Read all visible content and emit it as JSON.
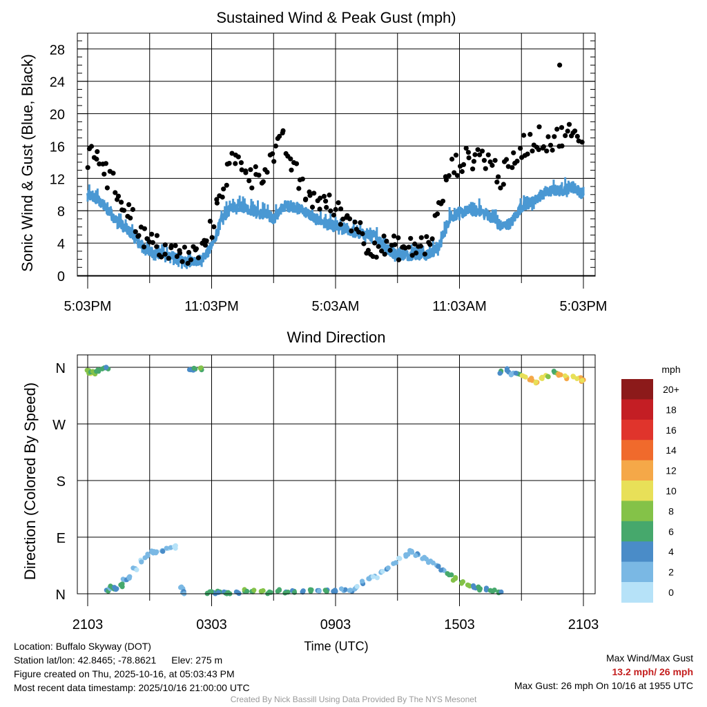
{
  "chart_data": [
    {
      "type": "scatter",
      "title": "Sustained Wind & Peak Gust (mph)",
      "ylabel": "Sonic Wind & Gust (Blue, Black)",
      "xlabel": "",
      "ylim": [
        0,
        29
      ],
      "x_ticks": [
        "5:03PM",
        "11:03PM",
        "5:03AM",
        "11:03AM",
        "5:03PM"
      ],
      "y_ticks": [
        0,
        4,
        8,
        12,
        16,
        20,
        24,
        28
      ],
      "grid": true,
      "series": [
        {
          "name": "Sustained Wind",
          "color": "#4a98d3",
          "x_hours": [
            0,
            0.5,
            1,
            1.5,
            2,
            2.5,
            3,
            3.5,
            4,
            4.5,
            5,
            5.5,
            6,
            6.5,
            7,
            7.5,
            8,
            8.5,
            9,
            9.5,
            10,
            10.5,
            11,
            11.5,
            12,
            12.5,
            13,
            13.5,
            14,
            14.5,
            15,
            15.5,
            16,
            16.5,
            17,
            17.5,
            18,
            18.5,
            19,
            19.5,
            20,
            20.5,
            21,
            21.5,
            22,
            22.5,
            23,
            23.5,
            24
          ],
          "values": [
            10,
            9.3,
            8,
            6.5,
            5.5,
            4,
            3,
            2.6,
            2.5,
            1.8,
            1.6,
            2,
            3.5,
            7,
            8.5,
            8.5,
            8,
            7.5,
            7,
            8.6,
            8.5,
            8,
            7,
            6.5,
            6,
            5.8,
            5.2,
            5,
            4.8,
            3,
            2.6,
            2.5,
            2.6,
            2.5,
            3.5,
            7,
            7.8,
            8,
            8,
            7.3,
            6,
            6.5,
            8.5,
            9,
            10,
            10.5,
            10.5,
            11,
            10
          ]
        },
        {
          "name": "Peak Gust",
          "color": "#000000",
          "x_hours": [
            0,
            0.5,
            1,
            1.5,
            2,
            2.5,
            3,
            3.5,
            4,
            4.5,
            5,
            5.5,
            6,
            6.5,
            7,
            7.5,
            8,
            8.5,
            9,
            9.5,
            10,
            10.5,
            11,
            11.5,
            12,
            12.5,
            13,
            13.5,
            14,
            14.5,
            15,
            15.5,
            16,
            16.5,
            17,
            17.5,
            18,
            18.5,
            19,
            19.5,
            20,
            20.5,
            21,
            21.5,
            22,
            22.5,
            23,
            23.5,
            24
          ],
          "values": [
            14,
            15.5,
            12,
            10,
            8,
            5.5,
            4,
            3.5,
            3,
            2.3,
            2.5,
            3,
            6,
            11,
            14,
            14,
            12,
            13,
            15,
            16.5,
            13,
            10,
            9.5,
            9,
            8,
            7.2,
            6.5,
            4,
            3.7,
            3.5,
            3.4,
            3.3,
            3.5,
            4,
            8,
            13,
            14,
            14.5,
            15,
            14,
            12,
            13.5,
            16,
            16.5,
            17,
            16.5,
            17.5,
            17.5,
            15
          ]
        }
      ]
    },
    {
      "type": "scatter",
      "title": "Wind Direction",
      "ylabel": "Direction (Colored By Speed)",
      "xlabel": "Time (UTC)",
      "x_ticks": [
        "2103",
        "0303",
        "0903",
        "1503",
        "2103"
      ],
      "y_ticks": [
        "N",
        "E",
        "S",
        "W",
        "N"
      ],
      "grid": true,
      "color_scale": {
        "title": "mph",
        "labels": [
          "20+",
          "18",
          "16",
          "14",
          "12",
          "10",
          "8",
          "6",
          "4",
          "2",
          "0"
        ],
        "colors": [
          "#8c1a1a",
          "#c41e24",
          "#e0342c",
          "#f06a2c",
          "#f5a848",
          "#e8e058",
          "#84c248",
          "#46a86c",
          "#4a8cc8",
          "#7ab8e4",
          "#b6e2f8"
        ]
      },
      "points": [
        [
          0.05,
          355,
          9
        ],
        [
          0.15,
          350,
          10
        ],
        [
          0.25,
          352,
          8
        ],
        [
          0.35,
          351,
          9
        ],
        [
          0.5,
          356,
          7
        ],
        [
          0.8,
          359,
          6
        ],
        [
          0.9,
          360,
          5
        ],
        [
          1.0,
          5,
          5
        ],
        [
          1.1,
          8,
          3
        ],
        [
          1.2,
          10,
          6
        ],
        [
          1.4,
          8,
          4
        ],
        [
          1.6,
          14,
          6
        ],
        [
          1.8,
          22,
          3
        ],
        [
          2.0,
          26,
          3
        ],
        [
          2.3,
          40,
          2
        ],
        [
          2.6,
          52,
          2
        ],
        [
          2.9,
          60,
          3
        ],
        [
          3.1,
          68,
          2
        ],
        [
          3.3,
          65,
          2
        ],
        [
          3.6,
          68,
          3
        ],
        [
          3.9,
          72,
          1
        ],
        [
          4.2,
          75,
          1
        ],
        [
          4.5,
          10,
          2
        ],
        [
          4.6,
          2,
          3
        ],
        [
          5.0,
          356,
          5
        ],
        [
          5.2,
          357,
          6
        ],
        [
          5.5,
          359,
          8
        ],
        [
          5.8,
          1,
          7
        ],
        [
          6.1,
          2,
          5
        ],
        [
          6.4,
          3,
          6
        ],
        [
          6.6,
          3,
          5
        ],
        [
          6.8,
          2,
          6
        ],
        [
          7.2,
          3,
          5
        ],
        [
          7.6,
          4,
          7
        ],
        [
          8.0,
          3,
          8
        ],
        [
          8.4,
          4,
          9
        ],
        [
          8.8,
          3,
          6
        ],
        [
          9.2,
          4,
          7
        ],
        [
          9.6,
          3,
          5
        ],
        [
          10.0,
          4,
          6
        ],
        [
          10.4,
          3,
          5
        ],
        [
          10.8,
          4,
          6
        ],
        [
          11.2,
          5,
          4
        ],
        [
          11.6,
          6,
          5
        ],
        [
          12.0,
          4,
          4
        ],
        [
          12.4,
          5,
          3
        ],
        [
          12.8,
          4,
          4
        ],
        [
          13.0,
          10,
          2
        ],
        [
          13.3,
          18,
          3
        ],
        [
          13.6,
          24,
          2
        ],
        [
          13.9,
          28,
          2
        ],
        [
          14.2,
          34,
          2
        ],
        [
          14.5,
          40,
          3
        ],
        [
          14.8,
          48,
          2
        ],
        [
          15.1,
          56,
          2
        ],
        [
          15.4,
          62,
          2
        ],
        [
          15.7,
          66,
          2
        ],
        [
          16.0,
          62,
          3
        ],
        [
          16.3,
          58,
          2
        ],
        [
          16.6,
          52,
          2
        ],
        [
          16.9,
          45,
          3
        ],
        [
          17.2,
          38,
          4
        ],
        [
          17.5,
          30,
          6
        ],
        [
          17.8,
          24,
          8
        ],
        [
          18.1,
          18,
          7
        ],
        [
          18.4,
          14,
          9
        ],
        [
          18.7,
          10,
          5
        ],
        [
          19.0,
          8,
          7
        ],
        [
          19.3,
          6,
          5
        ],
        [
          19.6,
          4,
          6
        ],
        [
          19.9,
          3,
          6
        ],
        [
          20.0,
          352,
          5
        ],
        [
          20.3,
          355,
          4
        ],
        [
          20.5,
          348,
          3
        ],
        [
          20.8,
          350,
          6
        ],
        [
          21.1,
          346,
          10
        ],
        [
          21.4,
          340,
          12
        ],
        [
          21.7,
          335,
          11
        ],
        [
          22.0,
          342,
          10
        ],
        [
          22.3,
          345,
          9
        ],
        [
          22.6,
          352,
          7
        ],
        [
          22.9,
          348,
          12
        ],
        [
          23.2,
          344,
          11
        ],
        [
          23.5,
          346,
          10
        ],
        [
          23.8,
          343,
          11
        ],
        [
          24.0,
          340,
          12
        ]
      ]
    }
  ],
  "footer": {
    "location": "Location: Buffalo Skyway (DOT)",
    "latlon": "Station lat/lon: 42.8465; -78.8621",
    "elev": "Elev: 275 m",
    "created": "Figure created on Thu, 2025-10-16, at 05:03:43 PM",
    "recent": "Most recent data timestamp: 2025/10/16 21:00:00 UTC",
    "max_title": "Max Wind/Max Gust",
    "max_values": "13.2 mph/ 26 mph",
    "max_gust_note": "Max Gust: 26 mph On 10/16 at 1955 UTC",
    "credit": "Created By Nick Bassill Using Data Provided By The NYS Mesonet"
  },
  "colors": {
    "grid": "#000000",
    "highlight": "#c41e1e"
  }
}
